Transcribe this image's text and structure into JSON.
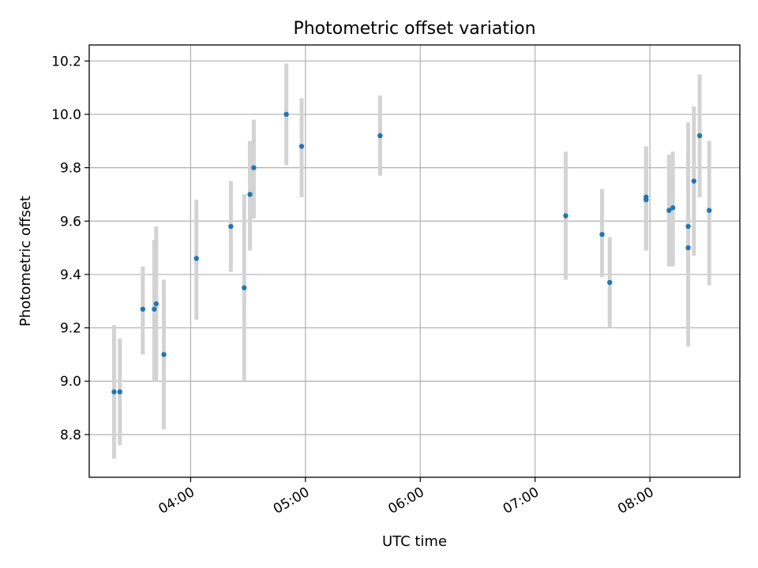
{
  "chart_data": {
    "type": "scatter",
    "title": "Photometric offset variation",
    "xlabel": "UTC time",
    "ylabel": "Photometric offset",
    "x_ticks": [
      "04:00",
      "05:00",
      "06:00",
      "07:00",
      "08:00"
    ],
    "y_ticks": [
      "8.8",
      "9.0",
      "9.2",
      "9.4",
      "9.6",
      "9.8",
      "10.0",
      "10.2"
    ],
    "xlim": [
      "03:07",
      "08:47"
    ],
    "ylim": [
      8.64,
      10.26
    ],
    "grid": true,
    "colors": {
      "points": "#1f77b4",
      "error_bars": "#d3d3d3",
      "grid": "#b0b0b0"
    },
    "points": [
      {
        "x": "03:20",
        "y": 8.96,
        "err_low": 8.71,
        "err_high": 9.21
      },
      {
        "x": "03:23",
        "y": 8.96,
        "err_low": 8.76,
        "err_high": 9.16
      },
      {
        "x": "03:35",
        "y": 9.27,
        "err_low": 9.1,
        "err_high": 9.43
      },
      {
        "x": "03:41",
        "y": 9.27,
        "err_low": 9.0,
        "err_high": 9.53
      },
      {
        "x": "03:42",
        "y": 9.29,
        "err_low": 9.0,
        "err_high": 9.58
      },
      {
        "x": "03:46",
        "y": 9.1,
        "err_low": 8.82,
        "err_high": 9.38
      },
      {
        "x": "04:03",
        "y": 9.46,
        "err_low": 9.23,
        "err_high": 9.68
      },
      {
        "x": "04:21",
        "y": 9.58,
        "err_low": 9.41,
        "err_high": 9.75
      },
      {
        "x": "04:28",
        "y": 9.35,
        "err_low": 9.0,
        "err_high": 9.7
      },
      {
        "x": "04:31",
        "y": 9.7,
        "err_low": 9.49,
        "err_high": 9.9
      },
      {
        "x": "04:33",
        "y": 9.8,
        "err_low": 9.61,
        "err_high": 9.98
      },
      {
        "x": "04:50",
        "y": 10.0,
        "err_low": 9.81,
        "err_high": 10.19
      },
      {
        "x": "04:58",
        "y": 9.88,
        "err_low": 9.69,
        "err_high": 10.06
      },
      {
        "x": "05:39",
        "y": 9.92,
        "err_low": 9.77,
        "err_high": 10.07
      },
      {
        "x": "07:16",
        "y": 9.62,
        "err_low": 9.38,
        "err_high": 9.86
      },
      {
        "x": "07:35",
        "y": 9.55,
        "err_low": 9.39,
        "err_high": 9.72
      },
      {
        "x": "07:39",
        "y": 9.37,
        "err_low": 9.2,
        "err_high": 9.54
      },
      {
        "x": "07:58",
        "y": 9.69,
        "err_low": 9.49,
        "err_high": 9.88
      },
      {
        "x": "07:58",
        "y": 9.68,
        "err_low": 9.49,
        "err_high": 9.88
      },
      {
        "x": "08:10",
        "y": 9.64,
        "err_low": 9.43,
        "err_high": 9.85
      },
      {
        "x": "08:12",
        "y": 9.65,
        "err_low": 9.43,
        "err_high": 9.86
      },
      {
        "x": "08:20",
        "y": 9.58,
        "err_low": 9.2,
        "err_high": 9.97
      },
      {
        "x": "08:20",
        "y": 9.5,
        "err_low": 9.13,
        "err_high": 9.87
      },
      {
        "x": "08:23",
        "y": 9.75,
        "err_low": 9.47,
        "err_high": 10.03
      },
      {
        "x": "08:26",
        "y": 9.92,
        "err_low": 9.69,
        "err_high": 10.15
      },
      {
        "x": "08:31",
        "y": 9.64,
        "err_low": 9.36,
        "err_high": 9.9
      }
    ]
  }
}
